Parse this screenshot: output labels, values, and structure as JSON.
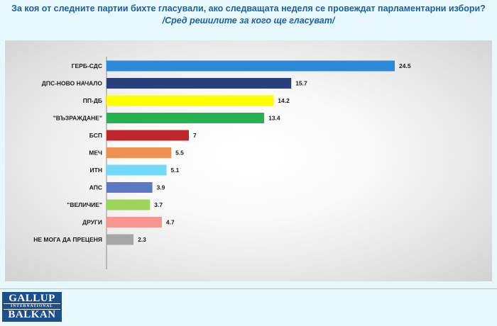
{
  "header": {
    "title": "За коя от следните партии бихте  гласували,  ако следващата неделя се провеждат парламентарни избори?",
    "subtitle": "/Сред решилите за кого ще гласуват/"
  },
  "logo": {
    "line1": "GALLUP",
    "line2": "INTERNATIONAL",
    "line3": "BALKAN"
  },
  "chart_data": {
    "type": "bar",
    "orientation": "horizontal",
    "title": "",
    "xlabel": "",
    "ylabel": "",
    "xlim": [
      0,
      25
    ],
    "grid": false,
    "legend": "none",
    "categories": [
      "ГЕРБ-СДС",
      "ДПС-НОВО НАЧАЛО",
      "ПП-ДБ",
      "\"ВЪЗРАЖДАНЕ\"",
      "БСП",
      "МЕЧ",
      "ИТН",
      "АПС",
      "\"ВЕЛИЧИЕ\"",
      "ДРУГИ",
      "НЕ МОГА ДА ПРЕЦЕНЯ"
    ],
    "values": [
      24.5,
      15.7,
      14.2,
      13.4,
      7,
      5.5,
      5.1,
      3.9,
      3.7,
      4.7,
      2.3
    ],
    "value_labels": [
      "24.5",
      "15.7",
      "14.2",
      "13.4",
      "7",
      "5.5",
      "5.1",
      "3.9",
      "3.7",
      "4.7",
      "2.3"
    ],
    "colors": [
      "#2a8ad9",
      "#2b3f7e",
      "#ffff00",
      "#27b24f",
      "#c1262c",
      "#ee9150",
      "#74d9f6",
      "#5b79c4",
      "#9fd45a",
      "#f79590",
      "#a6a6a6"
    ]
  }
}
